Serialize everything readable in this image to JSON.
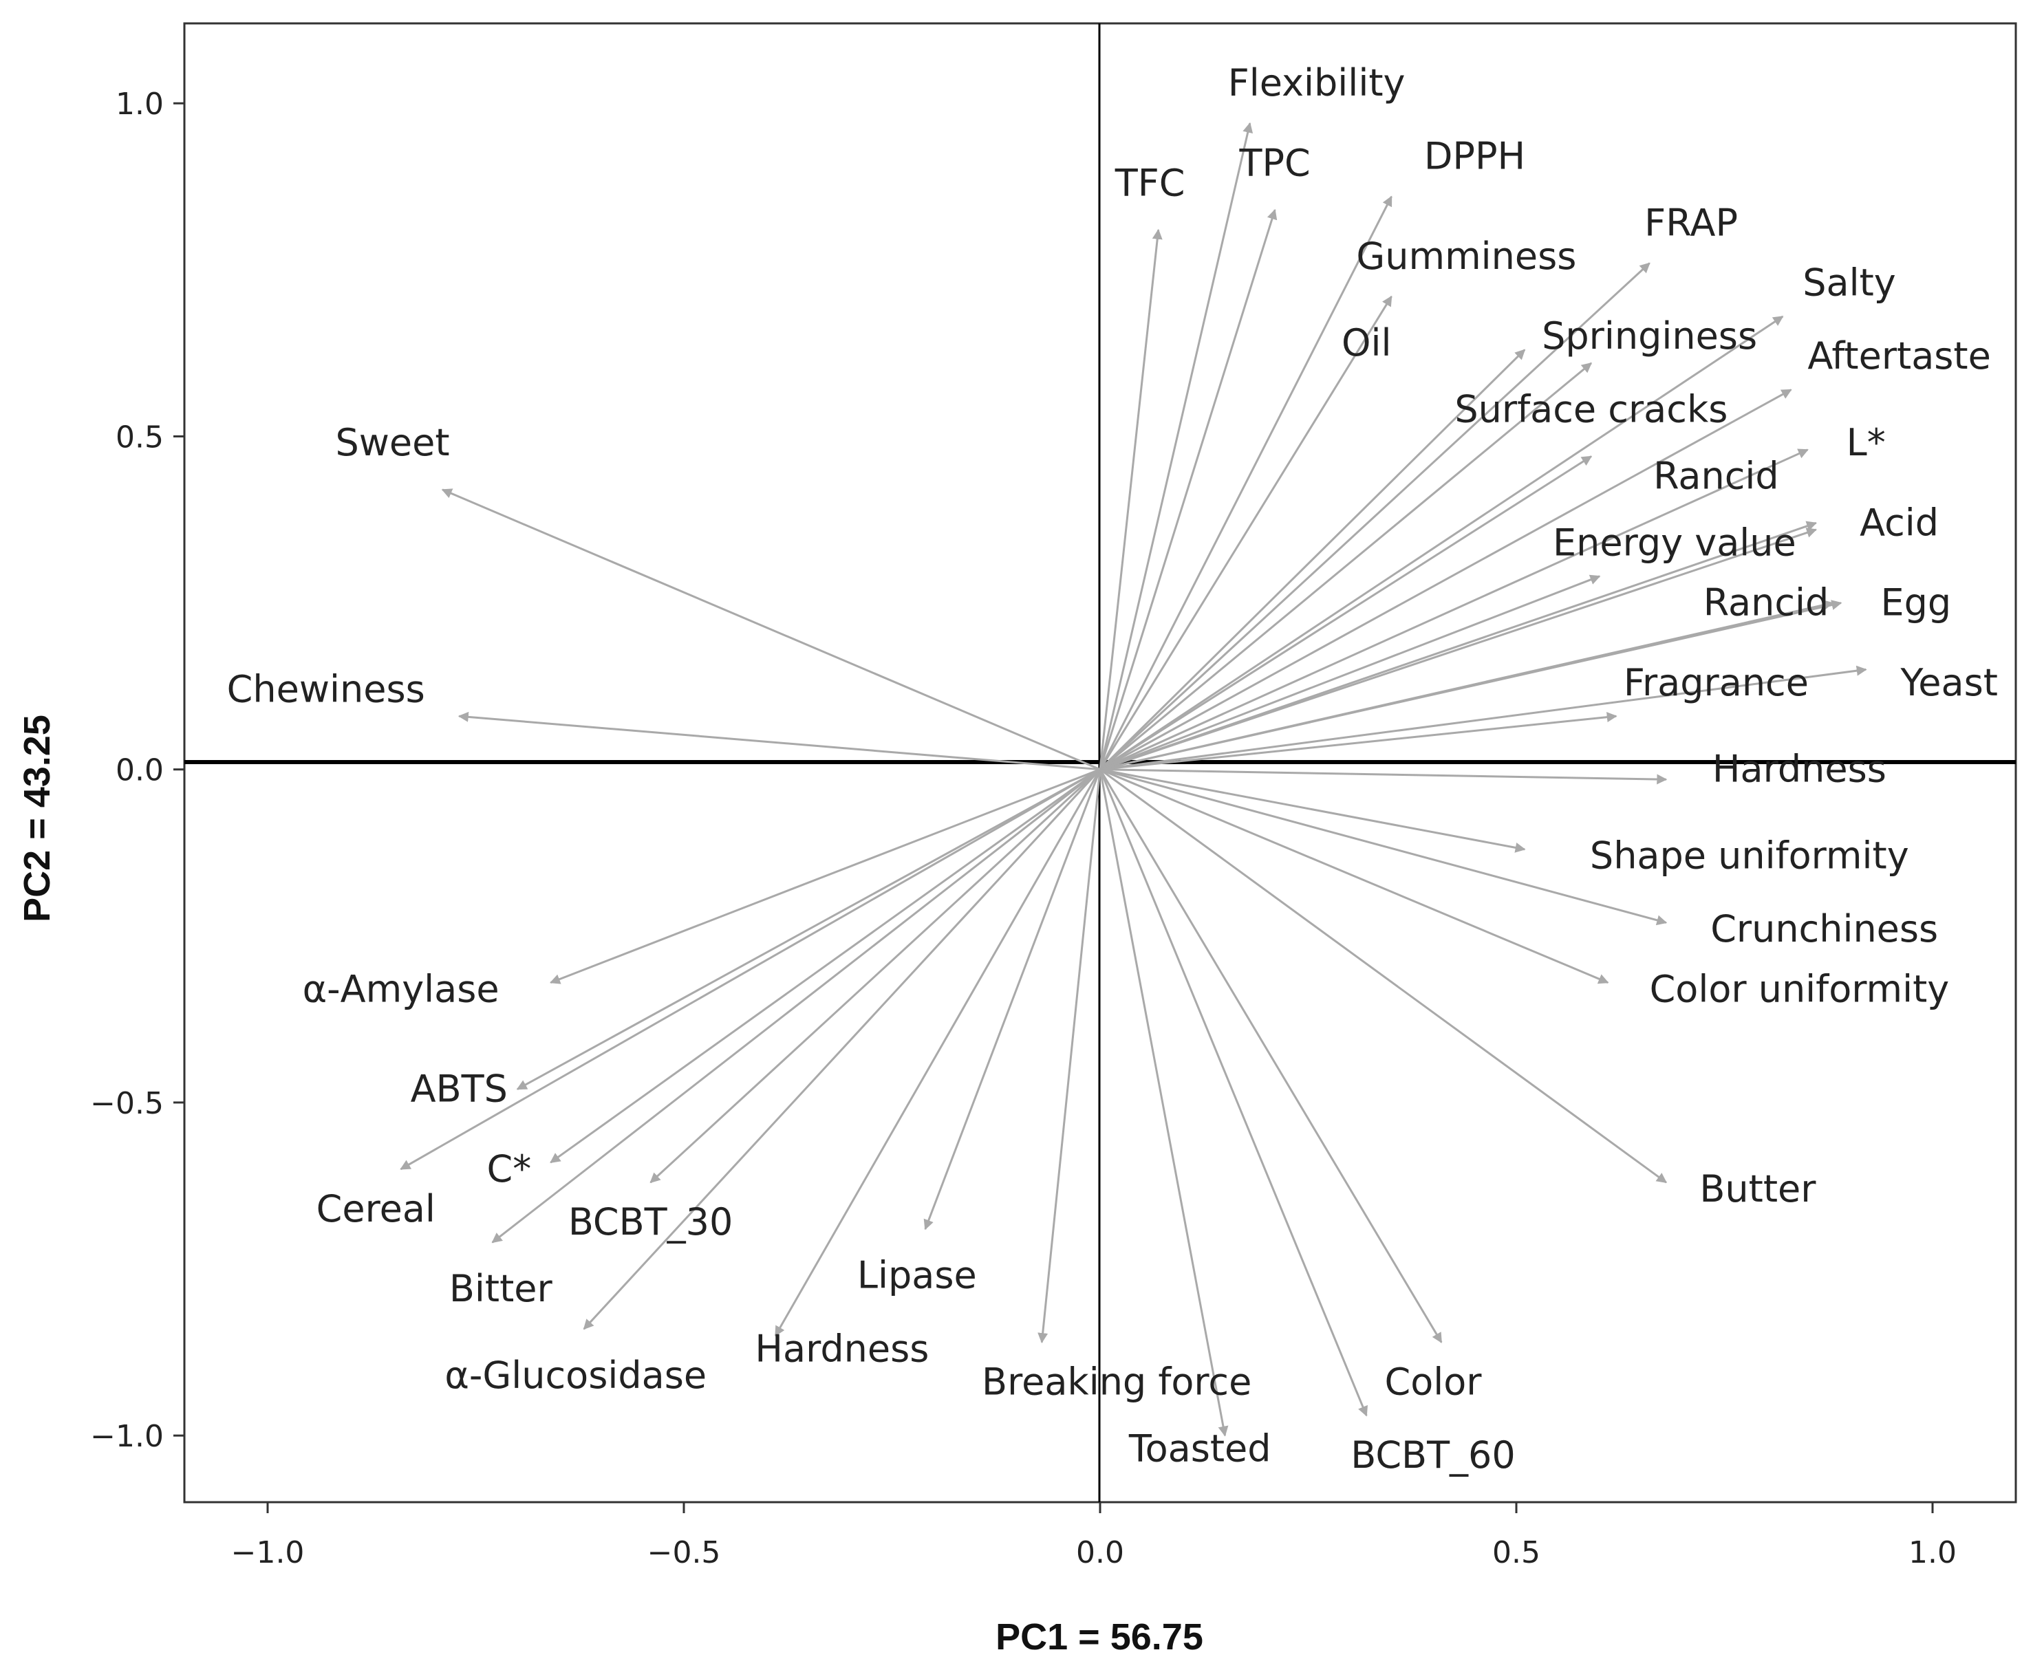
{
  "chart_data": {
    "type": "biplot",
    "xlabel": "PC1 = 56.75",
    "ylabel": "PC2 = 43.25",
    "xlim": [
      -1.1,
      1.1
    ],
    "ylim": [
      -1.1,
      1.12
    ],
    "xticks": [
      -1.0,
      -0.5,
      0.0,
      0.5,
      1.0
    ],
    "xtick_labels": [
      "−1.0",
      "−0.5",
      "0.0",
      "0.5",
      "1.0"
    ],
    "yticks": [
      -1.0,
      -0.5,
      0.0,
      0.5,
      1.0
    ],
    "ytick_labels": [
      "−1.0",
      "−0.5",
      "0.0",
      "0.5",
      "1.0"
    ],
    "grid": false,
    "arrow_color": "#a9a9a9",
    "reference_lines": [
      "x=0",
      "y=0"
    ],
    "vectors": [
      {
        "label": "Flexibility",
        "x": 0.18,
        "y": 0.97,
        "label_x": 0.26,
        "label_y": 1.03
      },
      {
        "label": "TFC",
        "x": 0.07,
        "y": 0.81,
        "label_x": 0.06,
        "label_y": 0.88
      },
      {
        "label": "TPC",
        "x": 0.21,
        "y": 0.84,
        "label_x": 0.21,
        "label_y": 0.91
      },
      {
        "label": "DPPH",
        "x": 0.35,
        "y": 0.86,
        "label_x": 0.45,
        "label_y": 0.92
      },
      {
        "label": "Gumminess",
        "x": 0.35,
        "y": 0.71,
        "label_x": 0.44,
        "label_y": 0.77
      },
      {
        "label": "Oil",
        "x": 0.51,
        "y": 0.63,
        "label_x": 0.32,
        "label_y": 0.64
      },
      {
        "label": "FRAP",
        "x": 0.66,
        "y": 0.76,
        "label_x": 0.71,
        "label_y": 0.82
      },
      {
        "label": "Springiness",
        "x": 0.59,
        "y": 0.61,
        "label_x": 0.66,
        "label_y": 0.65
      },
      {
        "label": "Salty",
        "x": 0.82,
        "y": 0.68,
        "label_x": 0.9,
        "label_y": 0.73
      },
      {
        "label": "Surface cracks",
        "x": 0.59,
        "y": 0.47,
        "label_x": 0.59,
        "label_y": 0.54
      },
      {
        "label": "Aftertaste",
        "x": 0.83,
        "y": 0.57,
        "label_x": 0.96,
        "label_y": 0.62
      },
      {
        "label": "L*",
        "x": 0.85,
        "y": 0.48,
        "label_x": 0.92,
        "label_y": 0.49
      },
      {
        "label": "Rancid",
        "x": 0.6,
        "y": 0.29,
        "label_x": 0.74,
        "label_y": 0.44
      },
      {
        "label": "Acid",
        "x": 0.86,
        "y": 0.37,
        "label_x": 0.96,
        "label_y": 0.37
      },
      {
        "label": "Energy value",
        "x": 0.86,
        "y": 0.36,
        "label_x": 0.69,
        "label_y": 0.34
      },
      {
        "label": "Rancid",
        "x": 0.88,
        "y": 0.25,
        "label_x": 0.8,
        "label_y": 0.25
      },
      {
        "label": "Egg",
        "x": 0.89,
        "y": 0.25,
        "label_x": 0.98,
        "label_y": 0.25
      },
      {
        "label": "Fragrance",
        "x": 0.62,
        "y": 0.08,
        "label_x": 0.74,
        "label_y": 0.13
      },
      {
        "label": "Yeast",
        "x": 0.92,
        "y": 0.15,
        "label_x": 1.02,
        "label_y": 0.13
      },
      {
        "label": "Hardness",
        "x": 0.68,
        "y": -0.015,
        "label_x": 0.84,
        "label_y": 0.0
      },
      {
        "label": "Shape uniformity",
        "x": 0.51,
        "y": -0.12,
        "label_x": 0.78,
        "label_y": -0.13
      },
      {
        "label": "Crunchiness",
        "x": 0.68,
        "y": -0.23,
        "label_x": 0.87,
        "label_y": -0.24
      },
      {
        "label": "Color uniformity",
        "x": 0.61,
        "y": -0.32,
        "label_x": 0.84,
        "label_y": -0.33
      },
      {
        "label": "Butter",
        "x": 0.68,
        "y": -0.62,
        "label_x": 0.79,
        "label_y": -0.63
      },
      {
        "label": "Color",
        "x": 0.41,
        "y": -0.86,
        "label_x": 0.4,
        "label_y": -0.92
      },
      {
        "label": "BCBT_60",
        "x": 0.32,
        "y": -0.97,
        "label_x": 0.4,
        "label_y": -1.03
      },
      {
        "label": "Toasted",
        "x": 0.15,
        "y": -1.0,
        "label_x": 0.12,
        "label_y": -1.02
      },
      {
        "label": "Breaking force",
        "x": -0.07,
        "y": -0.86,
        "label_x": 0.02,
        "label_y": -0.92
      },
      {
        "label": "Lipase",
        "x": -0.21,
        "y": -0.69,
        "label_x": -0.22,
        "label_y": -0.76
      },
      {
        "label": "Hardness",
        "x": -0.39,
        "y": -0.85,
        "label_x": -0.31,
        "label_y": -0.87
      },
      {
        "label": "BCBT_30",
        "x": -0.54,
        "y": -0.62,
        "label_x": -0.54,
        "label_y": -0.68
      },
      {
        "label": "α-Glucosidase",
        "x": -0.62,
        "y": -0.84,
        "label_x": -0.63,
        "label_y": -0.91
      },
      {
        "label": "C*",
        "x": -0.66,
        "y": -0.59,
        "label_x": -0.71,
        "label_y": -0.6
      },
      {
        "label": "Bitter",
        "x": -0.73,
        "y": -0.71,
        "label_x": -0.72,
        "label_y": -0.78
      },
      {
        "label": "ABTS",
        "x": -0.7,
        "y": -0.48,
        "label_x": -0.77,
        "label_y": -0.48
      },
      {
        "label": "Cereal",
        "x": -0.84,
        "y": -0.6,
        "label_x": -0.87,
        "label_y": -0.66
      },
      {
        "label": "α-Amylase",
        "x": -0.66,
        "y": -0.32,
        "label_x": -0.84,
        "label_y": -0.33
      },
      {
        "label": "Chewiness",
        "x": -0.77,
        "y": 0.08,
        "label_x": -0.93,
        "label_y": 0.12
      },
      {
        "label": "Sweet",
        "x": -0.79,
        "y": 0.42,
        "label_x": -0.85,
        "label_y": 0.49
      }
    ]
  }
}
